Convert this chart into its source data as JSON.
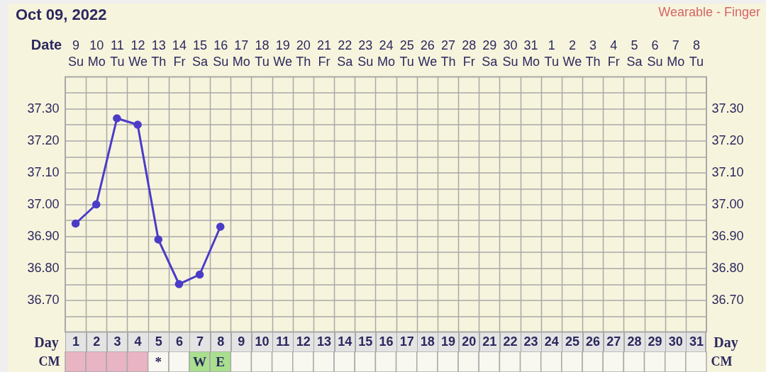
{
  "chart_data": [
    {
      "type": "line",
      "title": "Oct 09, 2022",
      "annotations": [
        "Wearable - Finger"
      ],
      "xlabel": "Day",
      "x2label": "Date",
      "x": [
        1,
        2,
        3,
        4,
        5,
        6,
        7,
        8
      ],
      "values": [
        36.94,
        37.0,
        37.27,
        37.25,
        36.89,
        36.75,
        36.78,
        36.93
      ],
      "color": "#4b3cc8",
      "xlim": [
        0.5,
        31.5
      ],
      "xticks": [
        1,
        {
          "value": 1.5,
          "label": null
        },
        2,
        {
          "value": 2.5,
          "label": null
        },
        3,
        {
          "value": 3.5,
          "label": null
        },
        4,
        {
          "value": 4.5,
          "label": null
        },
        5,
        {
          "value": 5.5,
          "label": null
        },
        6,
        {
          "value": 6.5,
          "label": null
        },
        7,
        {
          "value": 7.5,
          "label": null
        },
        8,
        {
          "value": 8.5,
          "label": null
        },
        9,
        {
          "value": 9.5,
          "label": null
        },
        10,
        {
          "value": 10.5,
          "label": null
        },
        11,
        {
          "value": 11.5,
          "label": null
        },
        12,
        {
          "value": 12.5,
          "label": null
        },
        13,
        {
          "value": 13.5,
          "label": null
        },
        14,
        {
          "value": 14.5,
          "label": null
        },
        15,
        {
          "value": 15.5,
          "label": null
        },
        16,
        {
          "value": 16.5,
          "label": null
        },
        17,
        {
          "value": 17.5,
          "label": null
        },
        18,
        {
          "value": 18.5,
          "label": null
        },
        19,
        {
          "value": 19.5,
          "label": null
        },
        20,
        {
          "value": 20.5,
          "label": null
        },
        21,
        {
          "value": 21.5,
          "label": null
        },
        22,
        {
          "value": 22.5,
          "label": null
        },
        23,
        {
          "value": 23.5,
          "label": null
        },
        24,
        {
          "value": 24.5,
          "label": null
        },
        25,
        {
          "value": 25.5,
          "label": null
        },
        26,
        {
          "value": 26.5,
          "label": null
        },
        27,
        {
          "value": 27.5,
          "label": null
        },
        28,
        {
          "value": 28.5,
          "label": null
        },
        29,
        {
          "value": 29.5,
          "label": null
        },
        30,
        {
          "value": 30.5,
          "label": null
        },
        31
      ],
      "x2lim": [
        "2022-10-08T12:00",
        "2022-11-08T12:00"
      ],
      "x2ticks": [
        {
          "value": "2022-10-09",
          "label": "9\nSu"
        },
        {
          "value": "2022-10-10",
          "label": "10\nMo"
        },
        {
          "value": "2022-10-11",
          "label": "11\nTu"
        },
        {
          "value": "2022-10-12",
          "label": "12\nWe"
        },
        {
          "value": "2022-10-13",
          "label": "13\nTh"
        },
        {
          "value": "2022-10-14",
          "label": "14\nFr"
        },
        {
          "value": "2022-10-15",
          "label": "15\nSa"
        },
        {
          "value": "2022-10-16",
          "label": "16\nSu"
        },
        {
          "value": "2022-10-17",
          "label": "17\nMo"
        },
        {
          "value": "2022-10-18",
          "label": "18\nTu"
        },
        {
          "value": "2022-10-19",
          "label": "19\nWe"
        },
        {
          "value": "2022-10-20",
          "label": "20\nTh"
        },
        {
          "value": "2022-10-21",
          "label": "21\nFr"
        },
        {
          "value": "2022-10-22",
          "label": "22\nSa"
        },
        {
          "value": "2022-10-23",
          "label": "23\nSu"
        },
        {
          "value": "2022-10-24",
          "label": "24\nMo"
        },
        {
          "value": "2022-10-25",
          "label": "25\nTu"
        },
        {
          "value": "2022-10-26",
          "label": "26\nWe"
        },
        {
          "value": "2022-10-27",
          "label": "27\nTh"
        },
        {
          "value": "2022-10-28",
          "label": "28\nFr"
        },
        {
          "value": "2022-10-29",
          "label": "29\nSa"
        },
        {
          "value": "2022-10-30",
          "label": "30\nSu"
        },
        {
          "value": "2022-10-31",
          "label": "31\nMo"
        },
        {
          "value": "2022-11-01",
          "label": "1\nTu"
        },
        {
          "value": "2022-11-02",
          "label": "2\nWe"
        },
        {
          "value": "2022-11-03",
          "label": "3\nTh"
        },
        {
          "value": "2022-11-04",
          "label": "4\nFr"
        },
        {
          "value": "2022-11-05",
          "label": "5\nSa"
        },
        {
          "value": "2022-11-06",
          "label": "6\nSu"
        },
        {
          "value": "2022-11-07",
          "label": "7\nMo"
        },
        {
          "value": "2022-11-08",
          "label": "8\nTu"
        }
      ],
      "ylim": [
        36.6,
        37.4
      ],
      "yticks": [
        {
          "value": 36.65,
          "label": null
        },
        {
          "value": 36.7,
          "label": "36.70"
        },
        {
          "value": 36.75,
          "label": null
        },
        {
          "value": 36.8,
          "label": "36.80"
        },
        {
          "value": 36.85,
          "label": null
        },
        {
          "value": 36.9,
          "label": "36.90"
        },
        {
          "value": 36.95,
          "label": null
        },
        {
          "value": 37,
          "label": "37.00"
        },
        {
          "value": 37.05,
          "label": null
        },
        {
          "value": 37.1,
          "label": "37.10"
        },
        {
          "value": 37.15,
          "label": null
        },
        {
          "value": 37.2,
          "label": "37.20"
        },
        {
          "value": 37.25,
          "label": null
        },
        {
          "value": 37.3,
          "label": "37.30"
        },
        {
          "value": 37.35,
          "label": null
        }
      ],
      "y2lim": [
        36.6,
        37.4
      ],
      "y2ticks": [
        {
          "value": 36.7,
          "label": "36.70"
        },
        {
          "value": 36.8,
          "label": "36.80"
        },
        {
          "value": 36.9,
          "label": "36.90"
        },
        {
          "value": 37,
          "label": "37.00"
        },
        {
          "value": 37.1,
          "label": "37.10"
        },
        {
          "value": 37.2,
          "label": "37.20"
        },
        {
          "value": 37.3,
          "label": "37.30"
        }
      ],
      "grid": true,
      "marker": "circle",
      "line_style": "solid"
    },
    {
      "type": "heatmap",
      "categories": [
        null,
        null,
        null,
        null,
        null,
        null,
        null,
        null,
        null,
        null,
        null,
        null,
        null,
        null,
        null,
        null,
        null,
        null,
        null,
        null,
        null,
        null,
        null,
        null,
        null,
        null,
        null,
        null,
        null,
        null,
        null
      ],
      "y_categories": [
        "CM"
      ],
      "y2_categories": [
        "CM"
      ],
      "cells": [
        [
          null,
          null,
          null,
          null,
          "*",
          null,
          "W",
          "E",
          null,
          null,
          null,
          null,
          null,
          null,
          null,
          null,
          null,
          null,
          null,
          null,
          null,
          null,
          null,
          null,
          null,
          null,
          null,
          null,
          null,
          null,
          null
        ]
      ],
      "colors": [
        [
          "#e9b4c3",
          "#e9b4c3",
          "#e9b4c3",
          "#e9b4c3",
          "#f8f8f1",
          "#f8f8f1",
          "#a9df8f",
          "#a9df8f",
          "#f8f8f1",
          "#f8f8f1",
          "#f8f8f1",
          "#f8f8f1",
          "#f8f8f1",
          "#f8f8f1",
          "#f8f8f1",
          "#f8f8f1",
          "#f8f8f1",
          "#f8f8f1",
          "#f8f8f1",
          "#f8f8f1",
          "#f8f8f1",
          "#f8f8f1",
          "#f8f8f1",
          "#f8f8f1",
          "#f8f8f1",
          "#f8f8f1",
          "#f8f8f1",
          "#f8f8f1",
          "#f8f8f1",
          "#f8f8f1",
          "#f8f8f1"
        ]
      ],
      "tick_labels": "y"
    }
  ]
}
